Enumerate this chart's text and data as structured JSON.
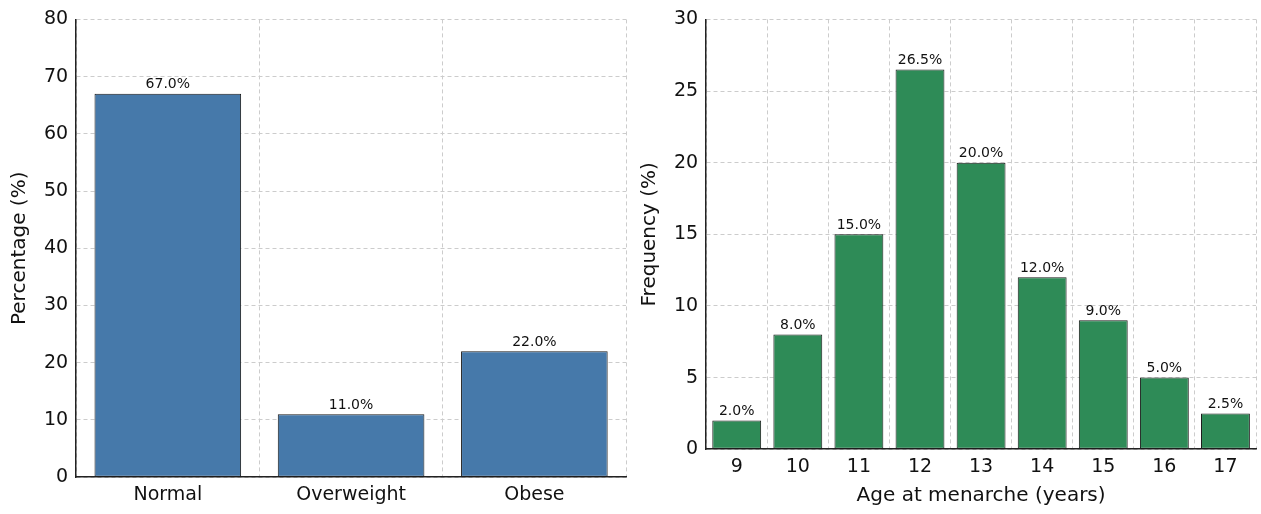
{
  "chart_data": [
    {
      "type": "bar",
      "categories": [
        "Normal",
        "Overweight",
        "Obese"
      ],
      "ylabel": "Percentage (%)",
      "series": [
        {
          "color": "#4679aa",
          "values": [
            67,
            11,
            22
          ],
          "value_labels": [
            "67.0%",
            "11.0%",
            "22.0%"
          ]
        }
      ],
      "ylim": [
        0,
        80
      ],
      "yticks": [
        0,
        10,
        20,
        30,
        40,
        50,
        60,
        70,
        80
      ],
      "grid": true
    },
    {
      "type": "bar",
      "categories": [
        "9",
        "10",
        "11",
        "12",
        "13",
        "14",
        "15",
        "16",
        "17"
      ],
      "xlabel": "Age at menarche (years)",
      "ylabel": "Frequency (%)",
      "series": [
        {
          "color": "#2e8b57",
          "values": [
            2,
            8,
            15,
            26.5,
            20,
            12,
            9,
            5,
            2.5
          ],
          "value_labels": [
            "2.0%",
            "8.0%",
            "15.0%",
            "26.5%",
            "20.0%",
            "12.0%",
            "9.0%",
            "5.0%",
            "2.5%"
          ]
        }
      ],
      "ylim": [
        0,
        30
      ],
      "yticks": [
        0,
        5,
        10,
        15,
        20,
        25,
        30
      ],
      "grid": true
    }
  ]
}
